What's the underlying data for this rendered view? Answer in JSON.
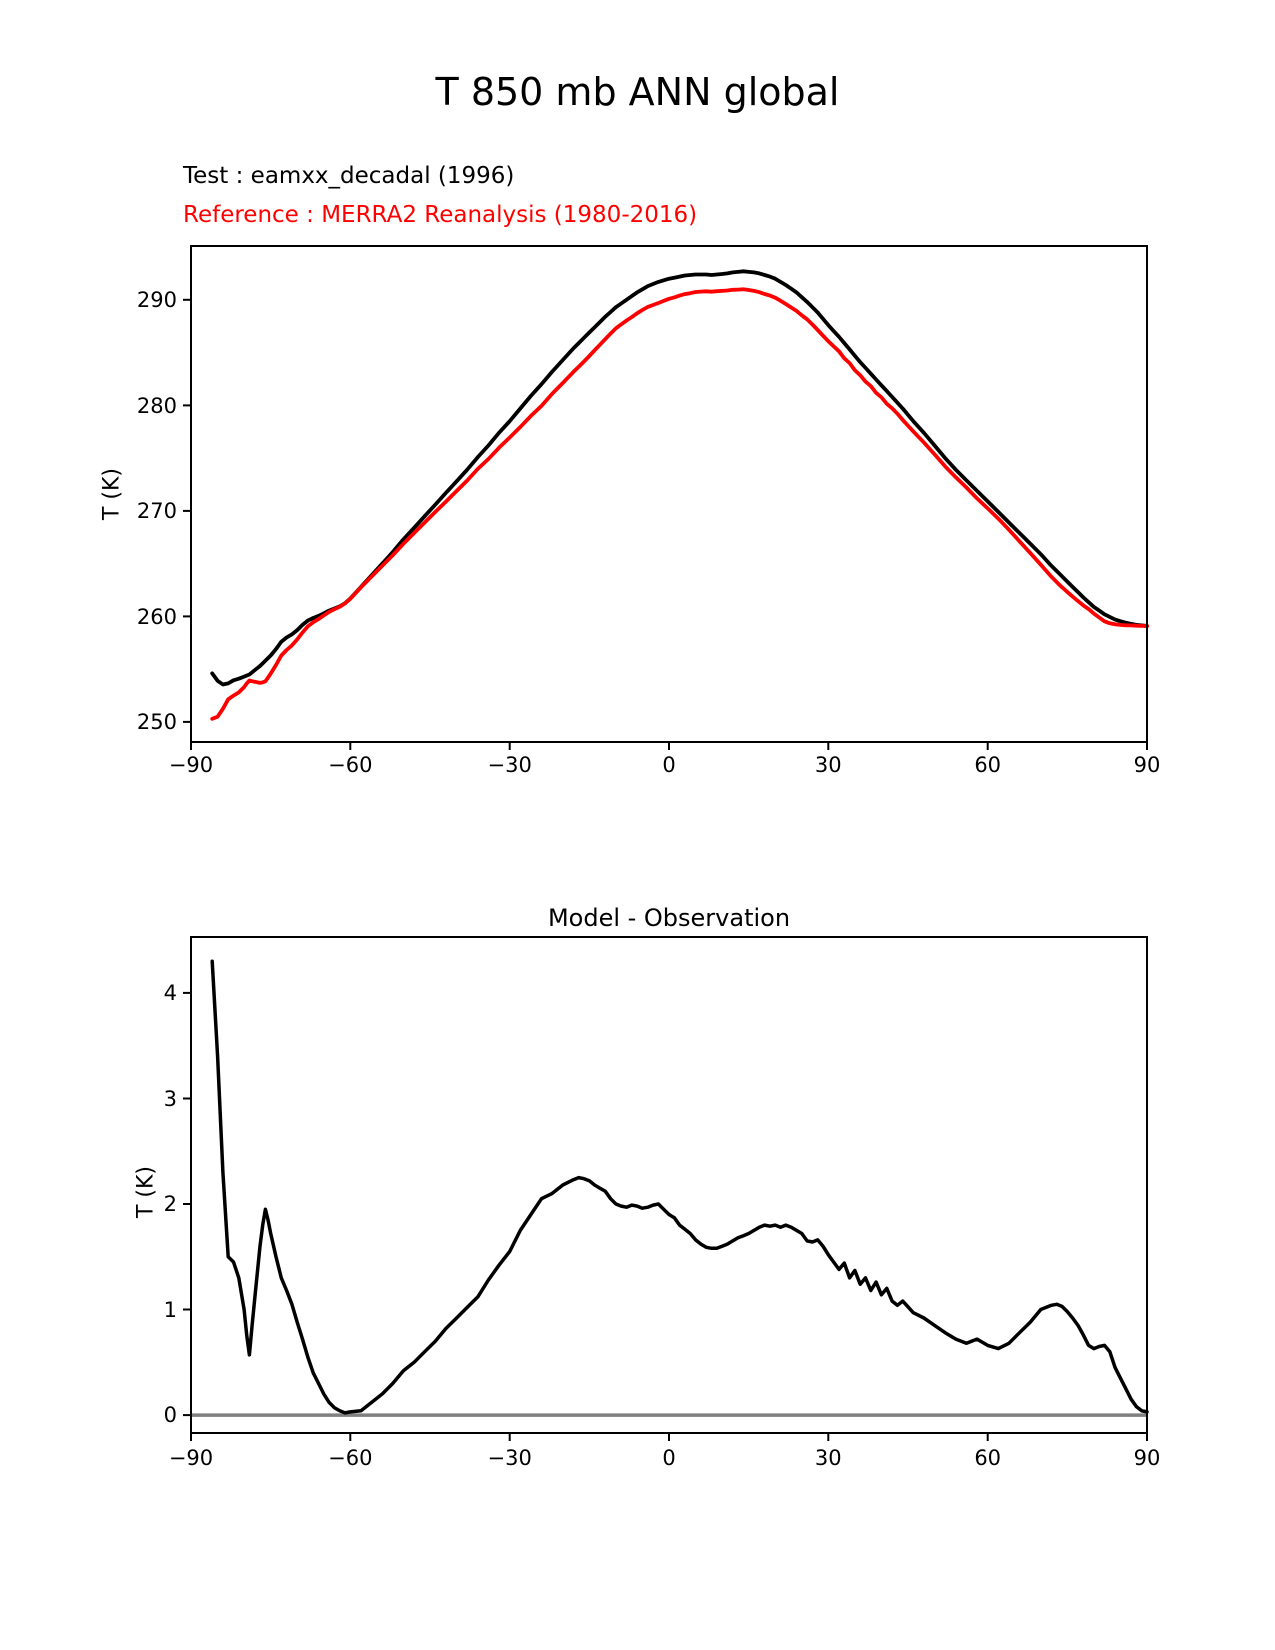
{
  "figure": {
    "title": "T 850 mb ANN global",
    "description_lines": [
      {
        "label": "Test : eamxx_decadal (1996)",
        "color": "#000000"
      },
      {
        "label": "Reference : MERRA2 Reanalysis (1980-2016)",
        "color": "#ff0000"
      }
    ]
  },
  "colors": {
    "test_curve": "#000000",
    "reference_curve": "#ff0000",
    "diff_curve": "#000000",
    "zero_line": "#808080",
    "spine": "#000000"
  },
  "chart_data": [
    {
      "type": "line",
      "title": "",
      "xlabel": "",
      "ylabel": "T (K)",
      "grid": false,
      "legend_position": "above-left",
      "xlim": [
        -90,
        90
      ],
      "ylim": [
        248.1,
        295.1
      ],
      "xticks": [
        -90,
        -60,
        -30,
        0,
        30,
        60,
        90
      ],
      "xtick_labels": [
        "−90",
        "−60",
        "−30",
        "0",
        "30",
        "60",
        "90"
      ],
      "yticks": [
        250,
        260,
        270,
        280,
        290
      ],
      "ytick_labels": [
        "250",
        "260",
        "270",
        "280",
        "290"
      ],
      "x": [
        -86,
        -85,
        -84,
        -83,
        -82,
        -81,
        -80,
        -79.5,
        -79,
        -78.5,
        -78,
        -77,
        -76.5,
        -76,
        -75.5,
        -75,
        -74,
        -73,
        -72,
        -71,
        -70,
        -69,
        -68,
        -67,
        -66,
        -65,
        -64,
        -63,
        -62,
        -61,
        -60,
        -58,
        -56,
        -54,
        -52,
        -50,
        -48,
        -46,
        -44,
        -42,
        -40,
        -38,
        -36,
        -34,
        -32,
        -30,
        -28,
        -26,
        -24,
        -22,
        -20,
        -18,
        -17,
        -16,
        -15,
        -14,
        -13,
        -12,
        -11,
        -10,
        -9,
        -8,
        -7,
        -6,
        -5,
        -4,
        -3,
        -2,
        -1,
        0,
        1,
        2,
        3,
        4,
        5,
        6,
        7,
        8,
        9,
        10,
        11,
        12,
        13,
        14,
        15,
        16,
        17,
        18,
        19,
        20,
        21,
        22,
        23,
        24,
        25,
        26,
        27,
        28,
        29,
        30,
        31,
        32,
        33,
        34,
        35,
        36,
        37,
        38,
        39,
        40,
        41,
        42,
        43,
        44,
        46,
        48,
        50,
        52,
        54,
        56,
        58,
        60,
        62,
        64,
        66,
        68,
        70,
        71,
        72,
        73,
        74,
        75,
        76,
        77,
        78,
        79,
        80,
        81,
        82,
        83,
        84,
        85,
        86,
        87,
        88,
        89,
        90
      ],
      "series": [
        {
          "name": "Test : eamxx_decadal (1996)",
          "color": "#000000",
          "values": [
            254.6,
            253.9,
            253.55,
            253.65,
            253.95,
            254.1,
            254.3,
            254.4,
            254.5,
            254.7,
            254.9,
            255.3,
            255.55,
            255.8,
            256.05,
            256.3,
            256.9,
            257.6,
            258.0,
            258.3,
            258.7,
            259.2,
            259.6,
            259.85,
            260.05,
            260.3,
            260.55,
            260.75,
            260.95,
            261.25,
            261.7,
            262.8,
            263.9,
            265.0,
            266.1,
            267.3,
            268.4,
            269.5,
            270.6,
            271.7,
            272.8,
            273.9,
            275.1,
            276.2,
            277.4,
            278.5,
            279.7,
            280.9,
            282.0,
            283.2,
            284.3,
            285.4,
            285.9,
            286.4,
            286.9,
            287.4,
            287.9,
            288.4,
            288.85,
            289.3,
            289.65,
            290.0,
            290.35,
            290.7,
            291.0,
            291.3,
            291.5,
            291.7,
            291.85,
            292.0,
            292.1,
            292.2,
            292.3,
            292.35,
            292.4,
            292.4,
            292.4,
            292.35,
            292.4,
            292.45,
            292.5,
            292.6,
            292.65,
            292.7,
            292.65,
            292.6,
            292.5,
            292.35,
            292.2,
            292.0,
            291.7,
            291.4,
            291.05,
            290.7,
            290.25,
            289.8,
            289.3,
            288.8,
            288.2,
            287.6,
            287.05,
            286.5,
            285.9,
            285.3,
            284.7,
            284.1,
            283.55,
            283.0,
            282.45,
            281.9,
            281.35,
            280.8,
            280.25,
            279.7,
            278.5,
            277.4,
            276.2,
            275.0,
            273.9,
            272.9,
            271.9,
            270.9,
            269.9,
            268.9,
            267.9,
            266.9,
            265.9,
            265.35,
            264.8,
            264.3,
            263.8,
            263.3,
            262.8,
            262.3,
            261.8,
            261.35,
            260.9,
            260.55,
            260.2,
            259.95,
            259.7,
            259.55,
            259.4,
            259.3,
            259.2,
            259.15,
            259.1
          ]
        },
        {
          "name": "Reference : MERRA2 Reanalysis (1980-2016)",
          "color": "#ff0000",
          "values": [
            250.3,
            250.5,
            251.25,
            252.15,
            252.5,
            252.8,
            253.3,
            253.65,
            253.93,
            253.85,
            253.8,
            253.7,
            253.75,
            253.85,
            254.2,
            254.58,
            255.4,
            256.3,
            256.82,
            257.25,
            257.82,
            258.48,
            259.05,
            259.45,
            259.75,
            260.1,
            260.43,
            260.68,
            260.91,
            261.23,
            261.67,
            262.76,
            263.78,
            264.8,
            265.8,
            266.88,
            267.9,
            268.9,
            269.9,
            270.88,
            271.88,
            272.88,
            273.98,
            274.92,
            275.98,
            276.95,
            277.95,
            279.0,
            279.95,
            281.1,
            282.12,
            283.17,
            283.65,
            284.16,
            284.68,
            285.22,
            285.75,
            286.28,
            286.8,
            287.3,
            287.67,
            288.03,
            288.36,
            288.72,
            289.04,
            289.33,
            289.51,
            289.7,
            289.9,
            290.1,
            290.23,
            290.4,
            290.54,
            290.63,
            290.74,
            290.78,
            290.81,
            290.77,
            290.82,
            290.85,
            290.88,
            290.95,
            290.97,
            291.0,
            290.93,
            290.85,
            290.72,
            290.55,
            290.41,
            290.2,
            289.92,
            289.6,
            289.27,
            288.95,
            288.53,
            288.15,
            287.66,
            287.14,
            286.6,
            286.08,
            285.6,
            285.12,
            284.46,
            284.0,
            283.33,
            282.86,
            282.25,
            281.82,
            281.19,
            280.76,
            280.15,
            279.72,
            279.21,
            278.62,
            277.53,
            276.48,
            275.35,
            274.22,
            273.18,
            272.22,
            271.18,
            270.24,
            269.27,
            268.22,
            267.12,
            266.02,
            264.9,
            264.33,
            263.76,
            263.25,
            262.77,
            262.32,
            261.88,
            261.45,
            261.04,
            260.69,
            260.27,
            259.9,
            259.54,
            259.35,
            259.25,
            259.2,
            259.15,
            259.15,
            259.12,
            259.11,
            259.07
          ]
        }
      ]
    },
    {
      "type": "line",
      "title": "Model - Observation",
      "xlabel": "",
      "ylabel": "T (K)",
      "grid": false,
      "zero_line": 0,
      "xlim": [
        -90,
        90
      ],
      "ylim": [
        -0.17,
        4.53
      ],
      "xticks": [
        -90,
        -60,
        -30,
        0,
        30,
        60,
        90
      ],
      "xtick_labels": [
        "−90",
        "−60",
        "−30",
        "0",
        "30",
        "60",
        "90"
      ],
      "yticks": [
        0,
        1,
        2,
        3,
        4
      ],
      "ytick_labels": [
        "0",
        "1",
        "2",
        "3",
        "4"
      ],
      "x": [
        -86,
        -85,
        -84,
        -83,
        -82,
        -81,
        -80,
        -79.5,
        -79,
        -78.5,
        -78,
        -77,
        -76.5,
        -76,
        -75.5,
        -75,
        -74,
        -73,
        -72,
        -71,
        -70,
        -69,
        -68,
        -67,
        -66,
        -65,
        -64,
        -63,
        -62,
        -61,
        -60,
        -58,
        -56,
        -54,
        -52,
        -50,
        -48,
        -46,
        -44,
        -42,
        -40,
        -38,
        -36,
        -34,
        -32,
        -30,
        -28,
        -26,
        -24,
        -22,
        -20,
        -18,
        -17,
        -16,
        -15,
        -14,
        -13,
        -12,
        -11,
        -10,
        -9,
        -8,
        -7,
        -6,
        -5,
        -4,
        -3,
        -2,
        -1,
        0,
        1,
        2,
        3,
        4,
        5,
        6,
        7,
        8,
        9,
        10,
        11,
        12,
        13,
        14,
        15,
        16,
        17,
        18,
        19,
        20,
        21,
        22,
        23,
        24,
        25,
        26,
        27,
        28,
        29,
        30,
        31,
        32,
        33,
        34,
        35,
        36,
        37,
        38,
        39,
        40,
        41,
        42,
        43,
        44,
        46,
        48,
        50,
        52,
        54,
        56,
        58,
        60,
        62,
        64,
        66,
        68,
        70,
        71,
        72,
        73,
        74,
        75,
        76,
        77,
        78,
        79,
        80,
        81,
        82,
        83,
        84,
        85,
        86,
        87,
        88,
        89,
        90
      ],
      "series": [
        {
          "name": "Model - Observation",
          "color": "#000000",
          "values": [
            4.3,
            3.4,
            2.3,
            1.5,
            1.45,
            1.3,
            1.0,
            0.75,
            0.57,
            0.85,
            1.1,
            1.6,
            1.8,
            1.95,
            1.85,
            1.72,
            1.5,
            1.3,
            1.18,
            1.05,
            0.88,
            0.72,
            0.55,
            0.4,
            0.3,
            0.2,
            0.12,
            0.07,
            0.04,
            0.02,
            0.03,
            0.04,
            0.12,
            0.2,
            0.3,
            0.42,
            0.5,
            0.6,
            0.7,
            0.82,
            0.92,
            1.02,
            1.12,
            1.28,
            1.42,
            1.55,
            1.75,
            1.9,
            2.05,
            2.1,
            2.18,
            2.23,
            2.25,
            2.24,
            2.22,
            2.18,
            2.15,
            2.12,
            2.05,
            2.0,
            1.98,
            1.97,
            1.99,
            1.98,
            1.96,
            1.97,
            1.99,
            2.0,
            1.95,
            1.9,
            1.87,
            1.8,
            1.76,
            1.72,
            1.66,
            1.62,
            1.59,
            1.58,
            1.58,
            1.6,
            1.62,
            1.65,
            1.68,
            1.7,
            1.72,
            1.75,
            1.78,
            1.8,
            1.79,
            1.8,
            1.78,
            1.8,
            1.78,
            1.75,
            1.72,
            1.65,
            1.64,
            1.66,
            1.6,
            1.52,
            1.45,
            1.38,
            1.44,
            1.3,
            1.37,
            1.24,
            1.3,
            1.18,
            1.26,
            1.14,
            1.2,
            1.08,
            1.04,
            1.08,
            0.97,
            0.92,
            0.85,
            0.78,
            0.72,
            0.68,
            0.72,
            0.66,
            0.63,
            0.68,
            0.78,
            0.88,
            1.0,
            1.02,
            1.04,
            1.05,
            1.03,
            0.98,
            0.92,
            0.85,
            0.76,
            0.66,
            0.63,
            0.65,
            0.66,
            0.6,
            0.45,
            0.35,
            0.25,
            0.15,
            0.08,
            0.04,
            0.03
          ]
        }
      ]
    }
  ]
}
